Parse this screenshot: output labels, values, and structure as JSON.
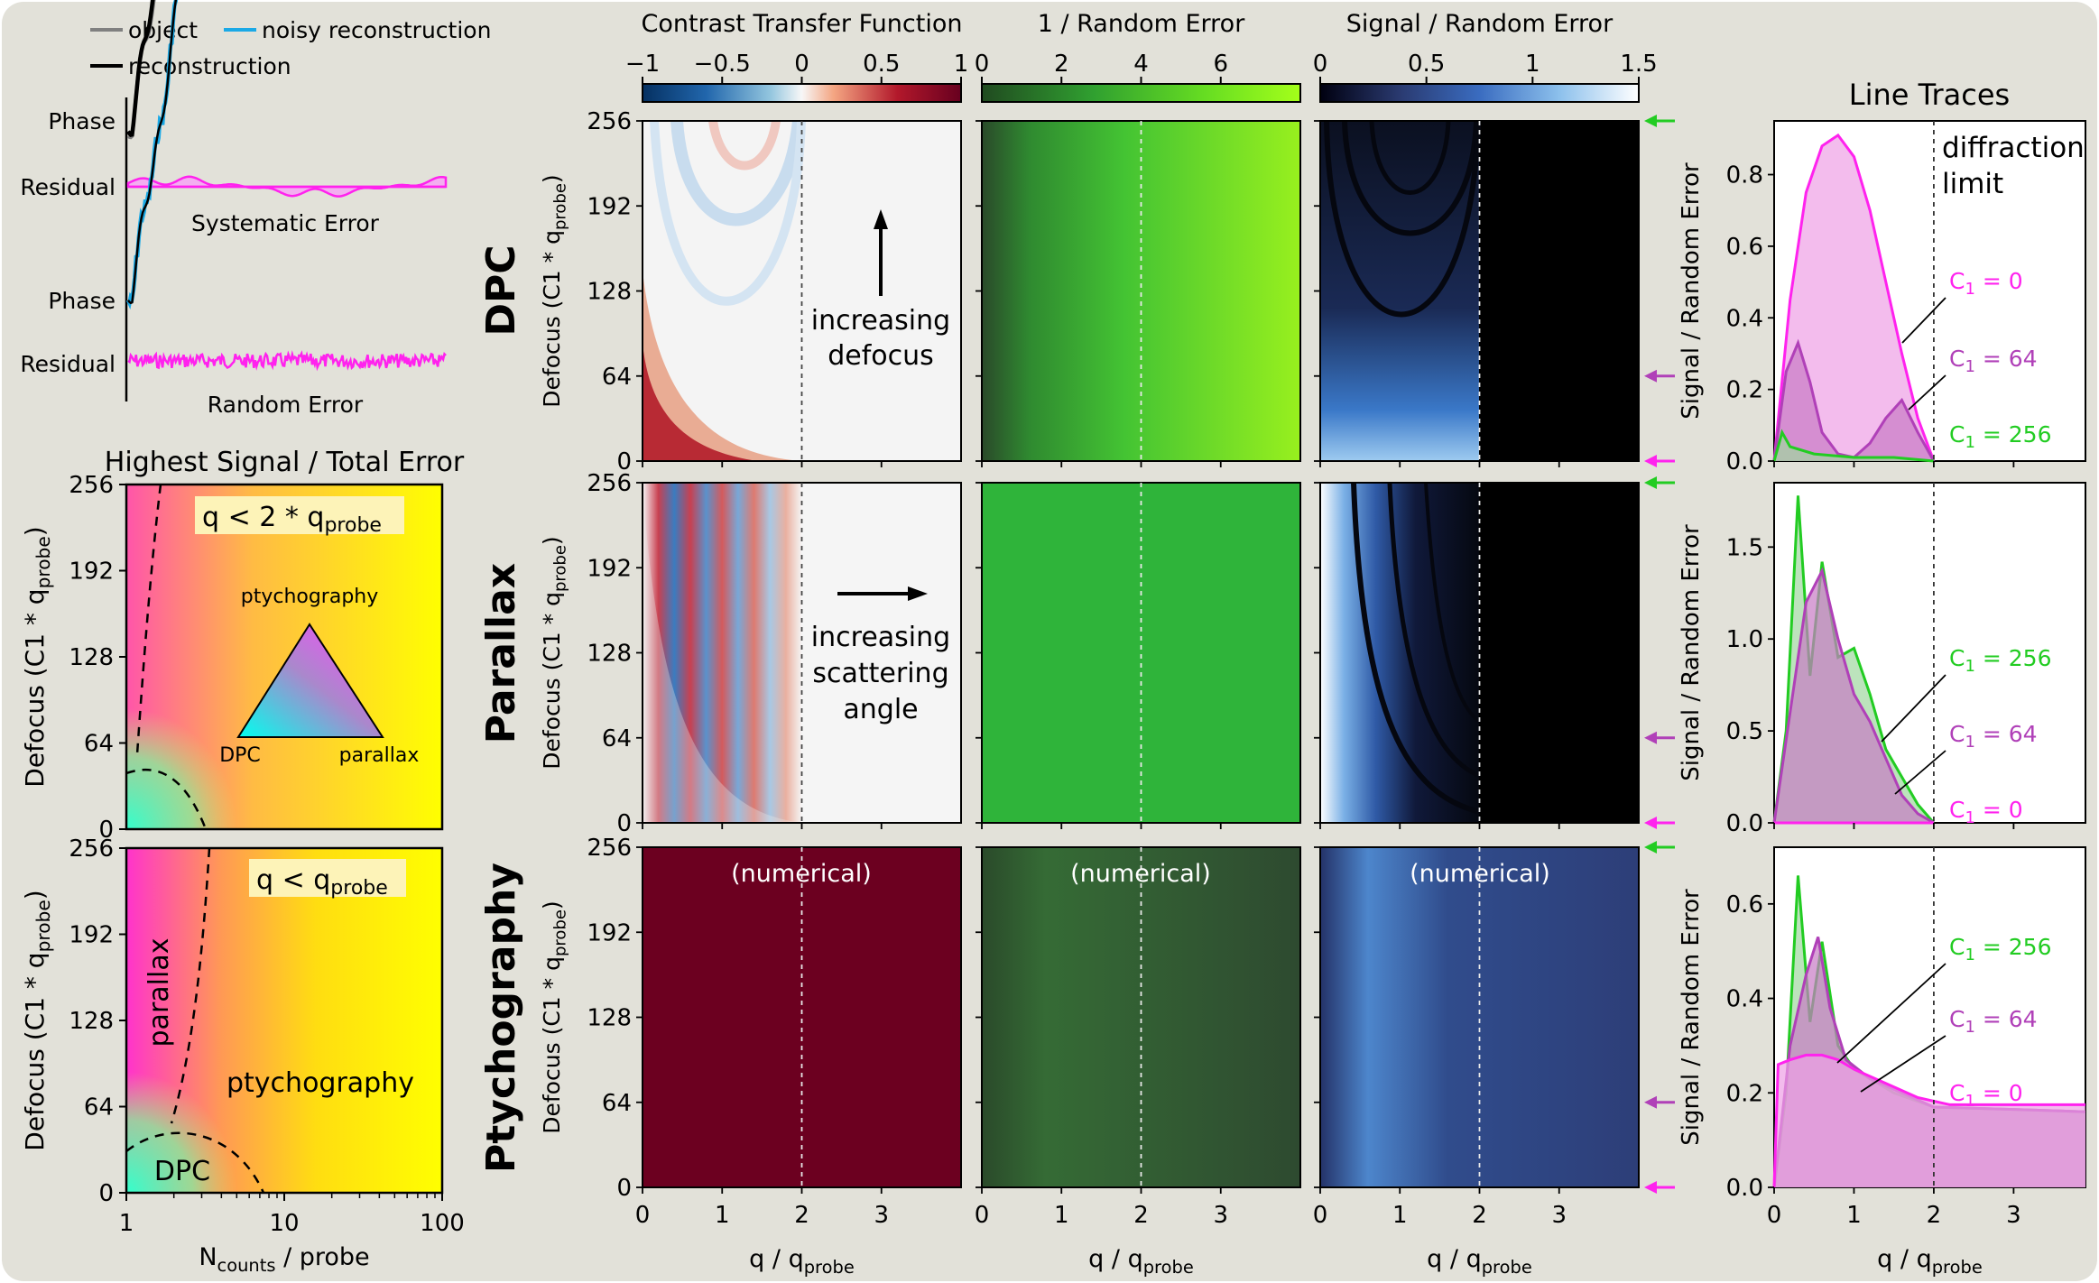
{
  "chart_data": {
    "type": "figure",
    "schematic": {
      "legend": [
        "object",
        "noisy reconstruction",
        "reconstruction"
      ],
      "colors": {
        "object": "#808080",
        "noisy": "#1aa9e6",
        "recon": "#000000",
        "residual": "#ff22ee"
      },
      "systematic": {
        "label_phase": "Phase",
        "label_residual": "Residual",
        "caption": "Systematic Error"
      },
      "random": {
        "label_phase": "Phase",
        "label_residual": "Residual",
        "caption": "Random Error"
      }
    },
    "signal_maps": {
      "title": "Highest Signal / Total Error",
      "ylabel": "Defocus (C1 * q",
      "ylabel_sub": "probe",
      "ylabel_end": ")",
      "yticks": [
        "0",
        "64",
        "128",
        "192",
        "256"
      ],
      "xlabel_main": "N",
      "xlabel_sub": "counts",
      "xlabel_rest": " / probe",
      "xticks": [
        "1",
        "10",
        "100"
      ],
      "top": {
        "box_text": "q < 2 * q",
        "box_sub": "probe",
        "tri_top": "ptychography",
        "tri_left": "DPC",
        "tri_right": "parallax"
      },
      "bottom": {
        "box_text": "q < q",
        "box_sub": "probe",
        "label_parallax": "parallax",
        "label_ptycho": "ptychography",
        "label_dpc": "DPC"
      }
    },
    "columns": [
      {
        "title": "Contrast Transfer Function",
        "ticks": [
          "−1",
          "−0.5",
          "0",
          "0.5",
          "1"
        ],
        "range": [
          -1,
          1
        ]
      },
      {
        "title": "1 / Random Error",
        "ticks": [
          "0",
          "2",
          "4",
          "6"
        ],
        "range": [
          0,
          8
        ]
      },
      {
        "title": "Signal / Random Error",
        "ticks": [
          "0",
          "0.5",
          "1",
          "1.5"
        ],
        "range": [
          0,
          1.5
        ]
      }
    ],
    "rows": [
      {
        "name": "DPC",
        "annotation": [
          "increasing",
          "defocus"
        ]
      },
      {
        "name": "Parallax",
        "annotation": [
          "increasing",
          "scattering",
          "angle"
        ]
      },
      {
        "name": "Ptychography",
        "annotation": [
          "(numerical)"
        ]
      }
    ],
    "heatmap_axes": {
      "yticks": [
        "0",
        "64",
        "128",
        "192",
        "256"
      ],
      "xticks": [
        "0",
        "1",
        "2",
        "3"
      ],
      "xlabel_main": "q / q",
      "xlabel_sub": "probe",
      "ylabel": "Defocus (C1 * q",
      "ylabel_sub": "probe",
      "ylabel_end": ")",
      "diffraction_limit_q": 2
    },
    "line_traces": {
      "title": "Line Traces",
      "ylabel": "Signal / Random Error",
      "xlabel_main": "q / q",
      "xlabel_sub": "probe",
      "xticks": [
        "0",
        "1",
        "2",
        "3"
      ],
      "diffraction_limit_label": [
        "diffraction",
        "limit"
      ],
      "series_colors": {
        "C1 = 0": "#ff22ee",
        "C1 = 64": "#b040b8",
        "C1 = 256": "#22cc22"
      },
      "panels": [
        {
          "row": "DPC",
          "ylim": [
            0,
            0.95
          ],
          "yticks": [
            "0.0",
            "0.2",
            "0.4",
            "0.6",
            "0.8"
          ],
          "labels": [
            "C",
            "1",
            " = 0",
            "C",
            "1",
            " = 64",
            "C",
            "1",
            " = 256"
          ],
          "series": [
            {
              "name": "C1 = 0",
              "x": [
                0.0,
                0.2,
                0.4,
                0.6,
                0.8,
                1.0,
                1.2,
                1.4,
                1.6,
                1.8,
                2.0
              ],
              "y": [
                0.0,
                0.45,
                0.75,
                0.88,
                0.91,
                0.85,
                0.7,
                0.5,
                0.3,
                0.12,
                0.0
              ]
            },
            {
              "name": "C1 = 64",
              "x": [
                0.0,
                0.15,
                0.3,
                0.45,
                0.6,
                0.8,
                1.0,
                1.2,
                1.4,
                1.6,
                1.8,
                2.0
              ],
              "y": [
                0.0,
                0.25,
                0.33,
                0.22,
                0.08,
                0.02,
                0.01,
                0.05,
                0.12,
                0.17,
                0.08,
                0.0
              ]
            },
            {
              "name": "C1 = 256",
              "x": [
                0.0,
                0.1,
                0.2,
                0.5,
                1.0,
                1.5,
                2.0
              ],
              "y": [
                0.0,
                0.08,
                0.04,
                0.02,
                0.01,
                0.01,
                0.0
              ]
            }
          ]
        },
        {
          "row": "Parallax",
          "ylim": [
            0,
            1.85
          ],
          "yticks": [
            "0.0",
            "0.5",
            "1.0",
            "1.5"
          ],
          "labels": [
            "C",
            "1",
            " = 256",
            "C",
            "1",
            " = 64",
            "C",
            "1",
            " = 0"
          ],
          "series": [
            {
              "name": "C1 = 256",
              "x": [
                0.0,
                0.15,
                0.3,
                0.45,
                0.6,
                0.8,
                1.0,
                1.2,
                1.4,
                1.6,
                1.8,
                2.0
              ],
              "y": [
                0.0,
                0.5,
                1.78,
                0.8,
                1.42,
                0.9,
                0.95,
                0.7,
                0.4,
                0.25,
                0.1,
                0.0
              ]
            },
            {
              "name": "C1 = 64",
              "x": [
                0.0,
                0.2,
                0.4,
                0.6,
                0.8,
                1.0,
                1.2,
                1.4,
                1.6,
                1.8,
                2.0
              ],
              "y": [
                0.0,
                0.6,
                1.2,
                1.37,
                1.0,
                0.7,
                0.55,
                0.35,
                0.15,
                0.05,
                0.0
              ]
            },
            {
              "name": "C1 = 0",
              "x": [
                0.0,
                1.0,
                2.0
              ],
              "y": [
                0.0,
                0.0,
                0.0
              ]
            }
          ]
        },
        {
          "row": "Ptychography",
          "ylim": [
            0,
            0.72
          ],
          "yticks": [
            "0.0",
            "0.2",
            "0.4",
            "0.6"
          ],
          "labels": [
            "C",
            "1",
            " = 256",
            "C",
            "1",
            " = 64",
            "C",
            "1",
            " = 0"
          ],
          "series": [
            {
              "name": "C1 = 256",
              "x": [
                0.0,
                0.15,
                0.3,
                0.45,
                0.6,
                0.8,
                1.0,
                1.5,
                2.0,
                3.0,
                3.9
              ],
              "y": [
                0.0,
                0.2,
                0.66,
                0.35,
                0.52,
                0.3,
                0.25,
                0.2,
                0.17,
                0.165,
                0.16
              ]
            },
            {
              "name": "C1 = 64",
              "x": [
                0.0,
                0.2,
                0.4,
                0.55,
                0.7,
                0.9,
                1.2,
                1.6,
                2.0,
                3.0,
                3.9
              ],
              "y": [
                0.0,
                0.3,
                0.45,
                0.53,
                0.38,
                0.27,
                0.23,
                0.2,
                0.17,
                0.165,
                0.16
              ]
            },
            {
              "name": "C1 = 0",
              "x": [
                0.0,
                0.05,
                0.2,
                0.4,
                0.6,
                0.8,
                1.0,
                1.4,
                1.8,
                2.2,
                3.0,
                3.9
              ],
              "y": [
                0.0,
                0.26,
                0.27,
                0.28,
                0.28,
                0.27,
                0.25,
                0.22,
                0.19,
                0.175,
                0.175,
                0.175
              ]
            }
          ]
        }
      ]
    },
    "defocus_markers": [
      {
        "defocus": 256,
        "color": "#22cc22"
      },
      {
        "defocus": 64,
        "color": "#b040b8"
      },
      {
        "defocus": 0,
        "color": "#ff22ee"
      }
    ]
  }
}
